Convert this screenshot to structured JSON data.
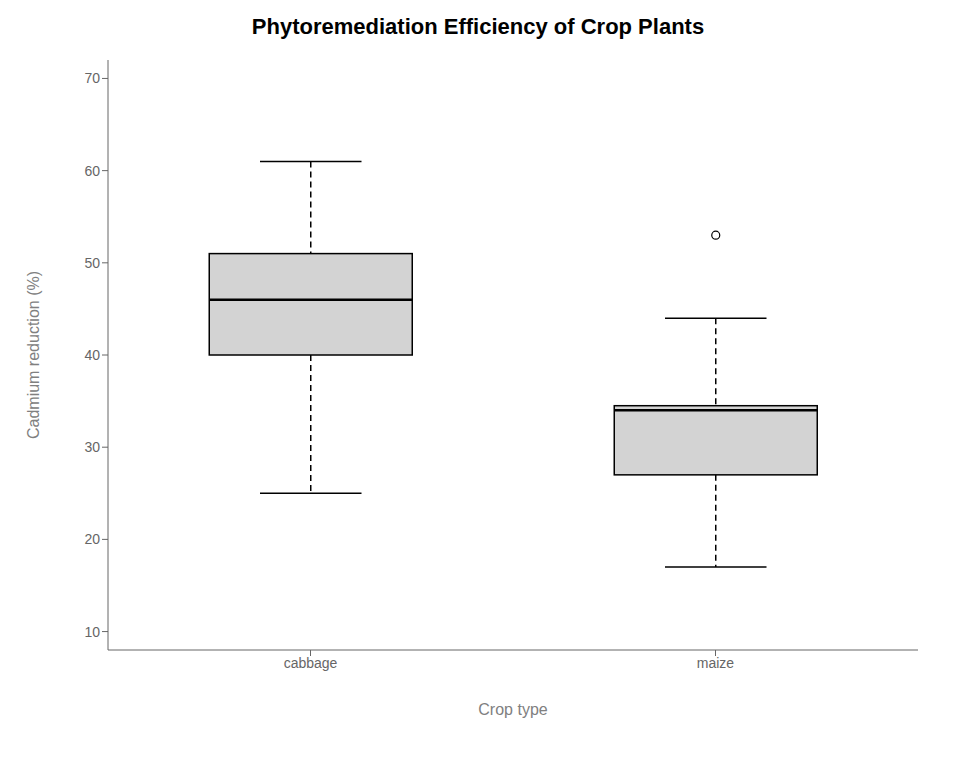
{
  "chart_data": {
    "type": "box",
    "title": "Phytoremediation Efficiency of Crop Plants",
    "xlabel": "Crop type",
    "ylabel": "Cadmium reduction (%)",
    "categories": [
      "cabbage",
      "maize"
    ],
    "q1": [
      40,
      27
    ],
    "median": [
      46,
      34
    ],
    "q3": [
      51,
      34.5
    ],
    "whisker_low": [
      25,
      17
    ],
    "whisker_high": [
      61,
      44
    ],
    "fliers": [
      [],
      [
        53
      ]
    ],
    "ylim": [
      8,
      72
    ],
    "yticks": [
      10,
      20,
      30,
      40,
      50,
      60,
      70
    ],
    "color": "#d3d3d3",
    "grid": false
  }
}
